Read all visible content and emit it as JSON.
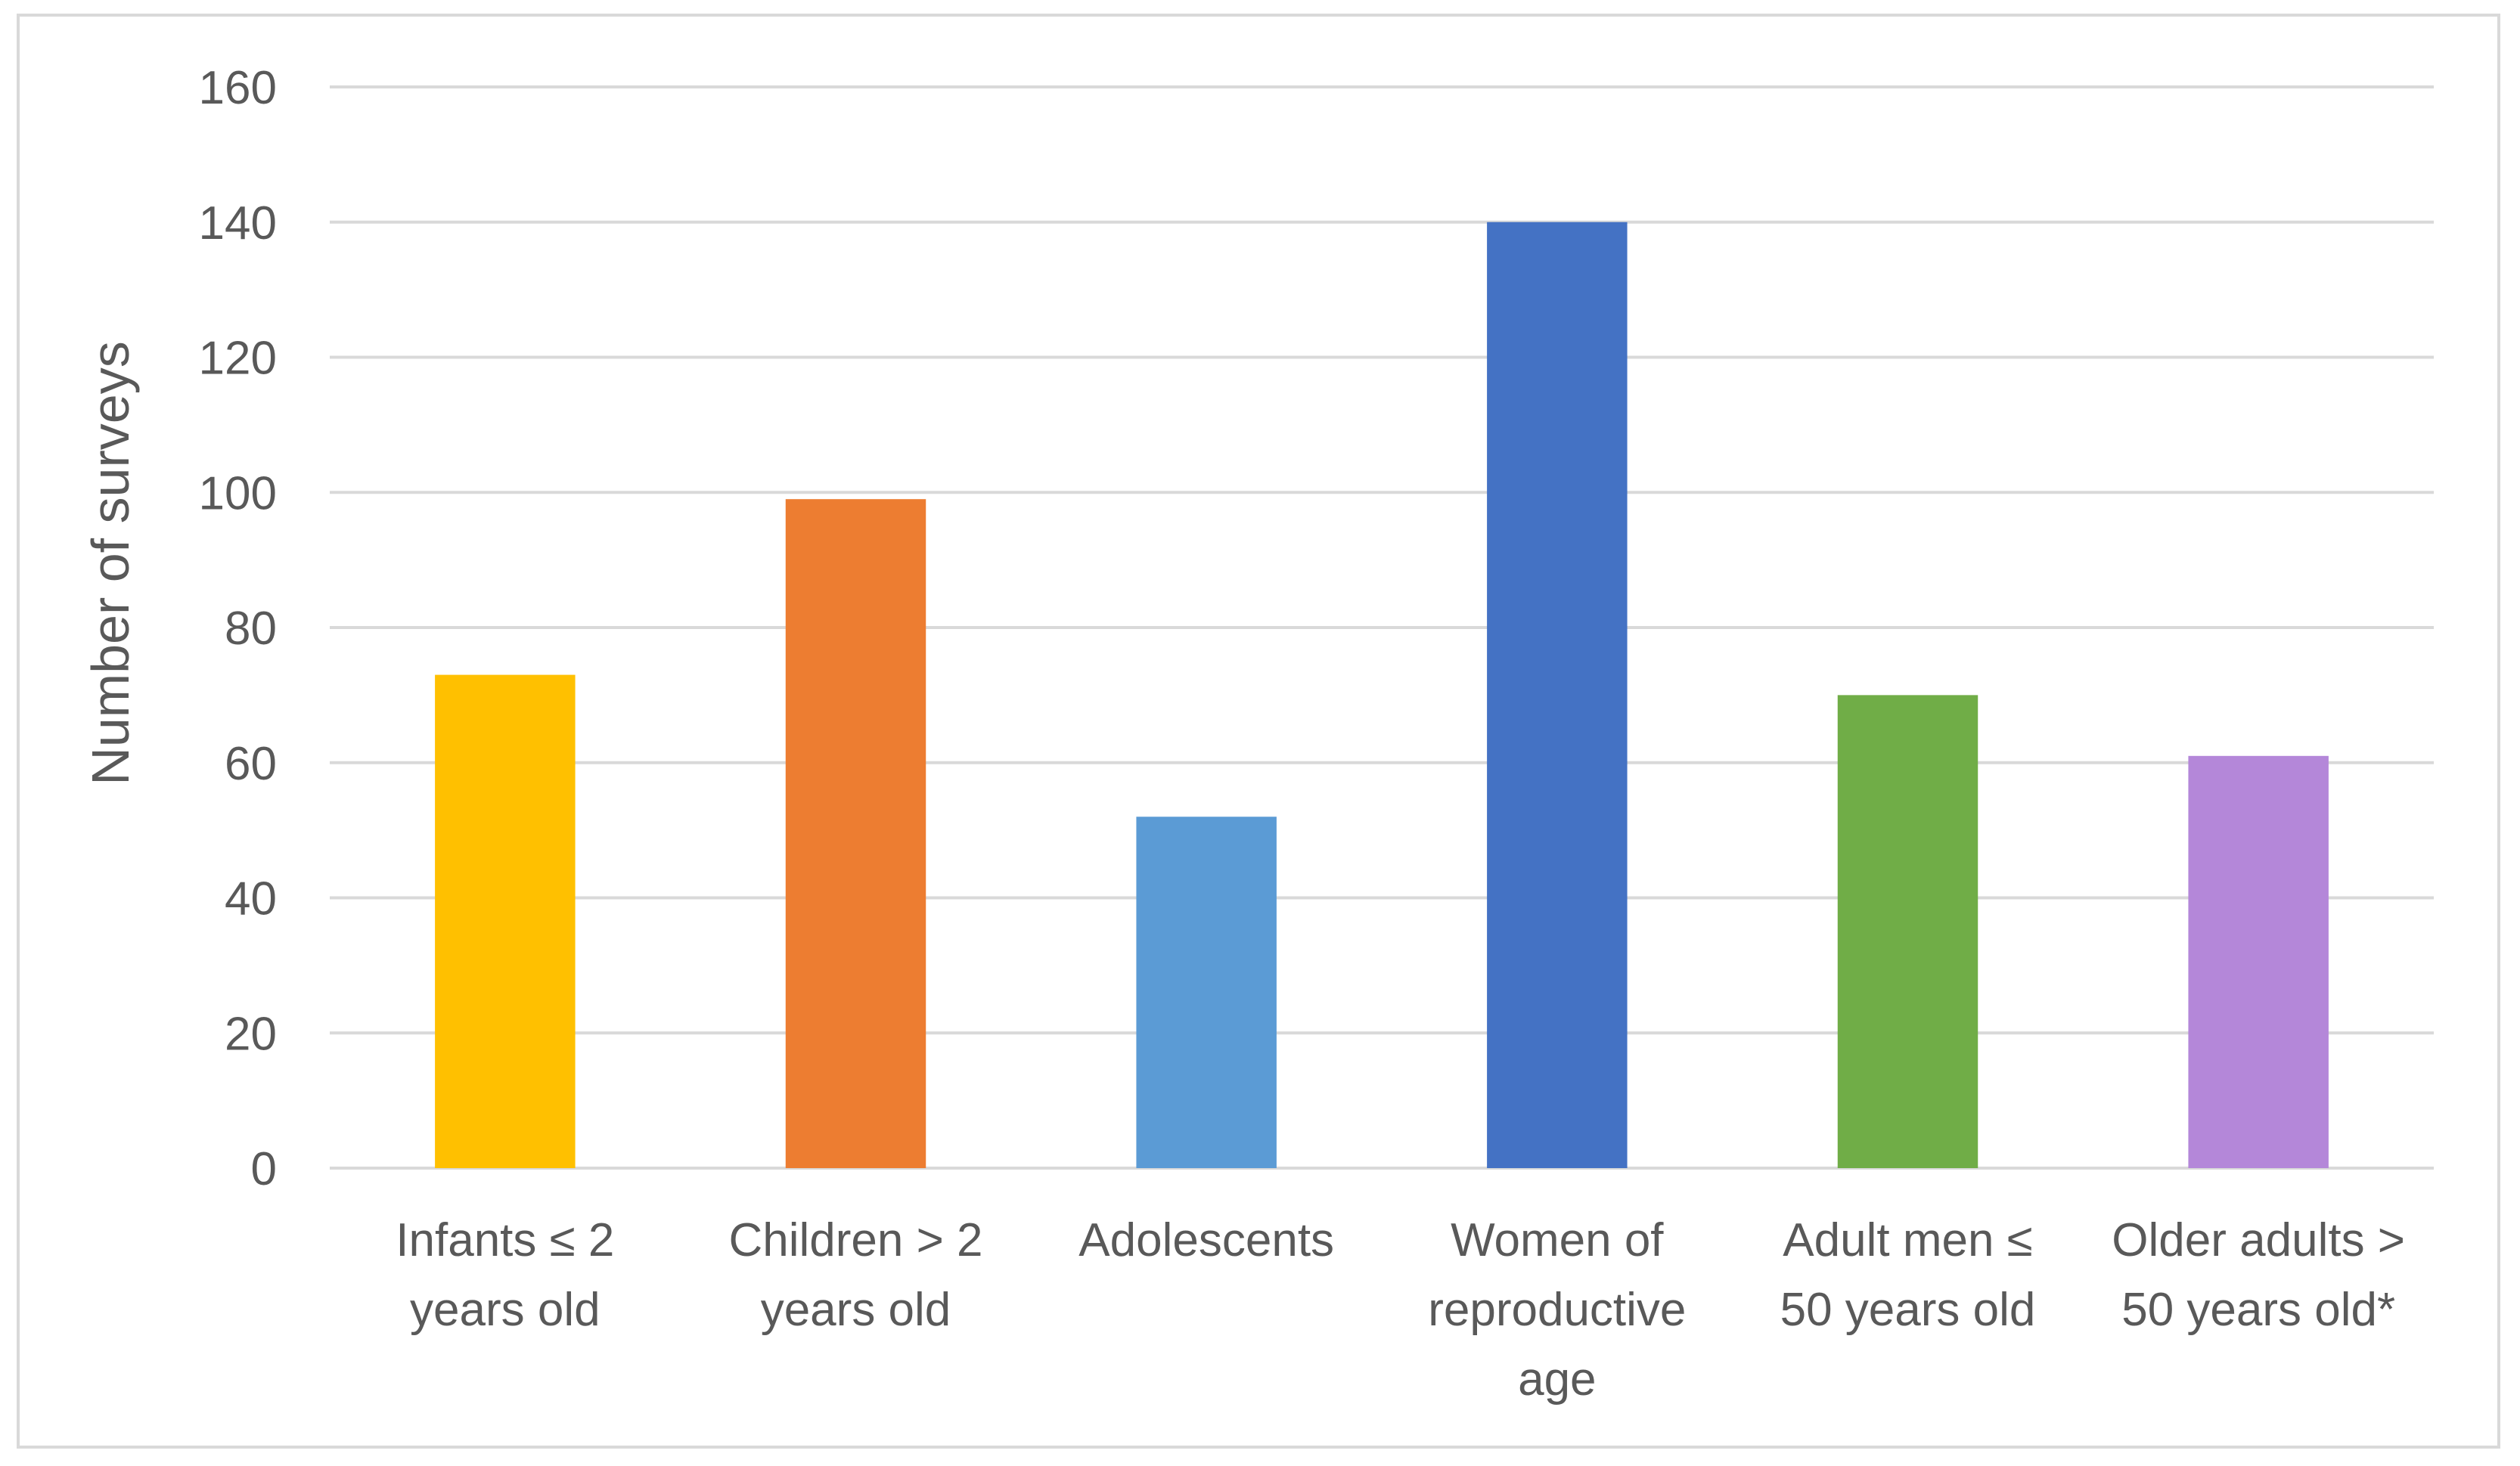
{
  "chart_data": {
    "type": "bar",
    "title": "",
    "xlabel": "",
    "ylabel": "Number of surveys",
    "ylim": [
      0,
      160
    ],
    "yticks": [
      0,
      20,
      40,
      60,
      80,
      100,
      120,
      140,
      160
    ],
    "ytick_labels": [
      "0",
      "20",
      "40",
      "60",
      "80",
      "100",
      "120",
      "140",
      "160"
    ],
    "grid": true,
    "legend": "none",
    "categories": [
      [
        "Infants ≤ 2",
        "years old"
      ],
      [
        "Children > 2",
        "years old"
      ],
      [
        "Adolescents"
      ],
      [
        "Women of",
        "reproductive",
        "age"
      ],
      [
        "Adult men ≤",
        "50 years old"
      ],
      [
        "Older adults >",
        "50 years old*"
      ]
    ],
    "values": [
      73,
      99,
      52,
      140,
      70,
      61
    ],
    "colors": [
      "#ffc000",
      "#ed7d31",
      "#5b9bd5",
      "#4472c4",
      "#70ad47",
      "#b487d9"
    ],
    "gridline_color": "#d9d9d9"
  }
}
